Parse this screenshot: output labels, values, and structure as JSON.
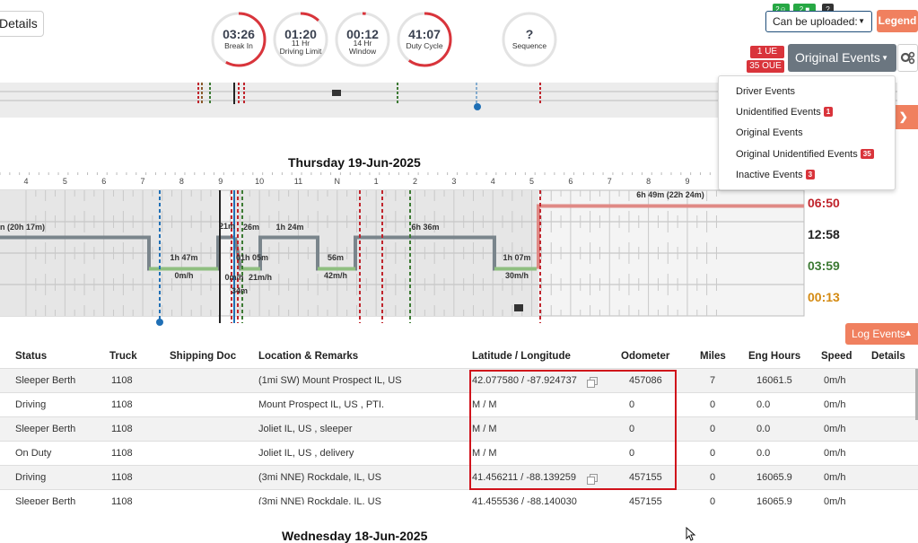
{
  "header": {
    "details_label": "Details",
    "timers": [
      {
        "value": "03:26",
        "label_lines": [
          "Break In"
        ],
        "progress": 0.58,
        "color": "#d9343b"
      },
      {
        "value": "01:20",
        "label_lines": [
          "11 Hr",
          "Driving Limit"
        ],
        "progress": 0.12,
        "color": "#d9343b"
      },
      {
        "value": "00:12",
        "label_lines": [
          "14 Hr",
          "Window"
        ],
        "progress": 0.02,
        "color": "#d9343b"
      },
      {
        "value": "41:07",
        "label_lines": [
          "Duty Cycle"
        ],
        "progress": 0.6,
        "color": "#d9343b"
      },
      {
        "value": "?",
        "label_lines": [
          "Sequence"
        ],
        "progress": 0,
        "color": "#d9343b"
      }
    ],
    "badges": [
      {
        "text": "2",
        "icon": "user-icon",
        "color": "#27a844"
      },
      {
        "text": "2",
        "icon": "truck-icon",
        "color": "#27a844"
      },
      {
        "text": "?",
        "icon": "",
        "color": "#333333"
      }
    ],
    "upload_select_value": "Can be uploaded:",
    "legend_label": "Legend",
    "ue_badge": "1 UE",
    "oue_badge": "35 OUE",
    "events_view_value": "Original Events"
  },
  "events_dropdown": {
    "items": [
      {
        "label": "Driver Events",
        "badge": ""
      },
      {
        "label": "Unidentified Events",
        "badge": "1"
      },
      {
        "label": "Original Events",
        "badge": ""
      },
      {
        "label": "Original Unidentified Events",
        "badge": "35"
      },
      {
        "label": "Inactive Events",
        "badge": "3"
      }
    ]
  },
  "events_side_button": "ts",
  "day": {
    "title": "Thursday 19-Jun-2025",
    "next_title": "Wednesday 18-Jun-2025"
  },
  "log_chart": {
    "hour_labels": [
      "4",
      "5",
      "6",
      "7",
      "8",
      "9",
      "10",
      "11",
      "N",
      "1",
      "2",
      "3",
      "4",
      "5",
      "6",
      "7",
      "8",
      "9"
    ],
    "segment_labels": [
      {
        "text": "n (20h 17m)"
      },
      {
        "text": "1h 47m"
      },
      {
        "text": "0m/h"
      },
      {
        "text": "21m"
      },
      {
        "text": "26m"
      },
      {
        "text": "1h 24m"
      },
      {
        "text": "01h 05m"
      },
      {
        "text": "0m/h"
      },
      {
        "text": "21m/h"
      },
      {
        "text": "34m"
      },
      {
        "text": "56m"
      },
      {
        "text": "42m/h"
      },
      {
        "text": "6h 36m"
      },
      {
        "text": "1h 07m"
      },
      {
        "text": "30m/h"
      },
      {
        "text": "6h 49m (22h 24m)"
      }
    ],
    "totals": [
      {
        "value": "06:50",
        "color": "#c0242c"
      },
      {
        "value": "12:58",
        "color": "#222222"
      },
      {
        "value": "03:59",
        "color": "#3c7a33"
      },
      {
        "value": "00:13",
        "color": "#d48a12"
      }
    ],
    "colors": {
      "off_duty": "#e08a86",
      "sleeper": "#7a858c",
      "driving": "#8fbf80",
      "on_duty": "#c0c0c0"
    }
  },
  "log_events_label": "Log Events",
  "table": {
    "headers": [
      "Status",
      "Truck",
      "Shipping Doc",
      "Location & Remarks",
      "Latitude / Longitude",
      "Odometer",
      "Miles",
      "Eng Hours",
      "Speed",
      "Details"
    ],
    "rows": [
      {
        "status": "Sleeper Berth",
        "truck": "1108",
        "doc": "",
        "location": "(1mi SW) Mount Prospect IL, US",
        "latlng": "42.077580 / -87.924737",
        "copy": true,
        "odometer": "457086",
        "miles": "7",
        "eng": "16061.5",
        "speed": "0m/h"
      },
      {
        "status": "Driving",
        "truck": "1108",
        "doc": "",
        "location": "Mount Prospect IL, US , PTI.",
        "latlng": "M / M",
        "copy": false,
        "odometer": "0",
        "miles": "0",
        "eng": "0.0",
        "speed": "0m/h"
      },
      {
        "status": "Sleeper Berth",
        "truck": "1108",
        "doc": "",
        "location": "Joliet IL, US , sleeper",
        "latlng": "M / M",
        "copy": false,
        "odometer": "0",
        "miles": "0",
        "eng": "0.0",
        "speed": "0m/h"
      },
      {
        "status": "On Duty",
        "truck": "1108",
        "doc": "",
        "location": "Joliet IL, US , delivery",
        "latlng": "M / M",
        "copy": false,
        "odometer": "0",
        "miles": "0",
        "eng": "0.0",
        "speed": "0m/h"
      },
      {
        "status": "Driving",
        "truck": "1108",
        "doc": "",
        "location": "(3mi NNE) Rockdale, IL, US",
        "latlng": "41.456211 / -88.139259",
        "copy": true,
        "odometer": "457155",
        "miles": "0",
        "eng": "16065.9",
        "speed": "0m/h"
      },
      {
        "status": "Sleeper Berth",
        "truck": "1108",
        "doc": "",
        "location": "(3mi NNE) Rockdale, IL, US",
        "latlng": "41.455536 / -88.140030",
        "copy": false,
        "odometer": "457155",
        "miles": "0",
        "eng": "16065.9",
        "speed": "0m/h"
      }
    ]
  }
}
